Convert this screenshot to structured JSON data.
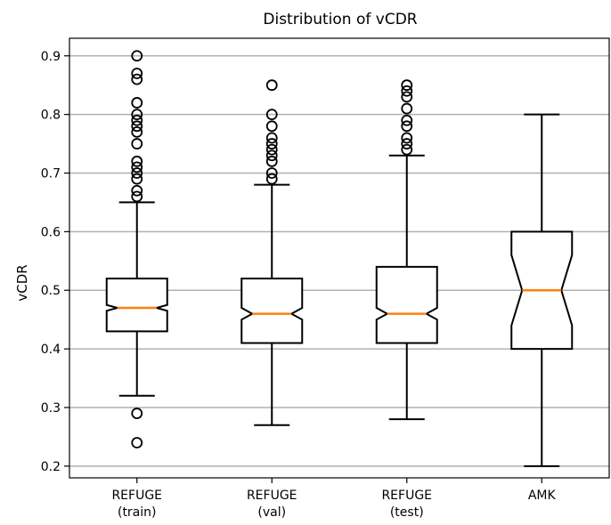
{
  "chart_data": {
    "type": "boxplot",
    "title": "Distribution of vCDR",
    "xlabel": "",
    "ylabel": "vCDR",
    "ylim": [
      0.18,
      0.93
    ],
    "yticks": [
      "0.2",
      "0.3",
      "0.4",
      "0.5",
      "0.6",
      "0.7",
      "0.8",
      "0.9"
    ],
    "grid": "horizontal",
    "notched": true,
    "colors": {
      "box": "#000000",
      "median": "#ff7f0e",
      "grid": "#b0b0b0"
    },
    "categories": [
      [
        "REFUGE",
        "(train)"
      ],
      [
        "REFUGE",
        "(val)"
      ],
      [
        "REFUGE",
        "(test)"
      ],
      [
        "AMK"
      ]
    ],
    "boxes": [
      {
        "whisker_low": 0.32,
        "q1": 0.43,
        "median": 0.47,
        "q3": 0.52,
        "whisker_high": 0.65,
        "notch_low": 0.465,
        "notch_high": 0.475,
        "outliers": [
          0.24,
          0.29,
          0.66,
          0.67,
          0.69,
          0.7,
          0.71,
          0.72,
          0.75,
          0.77,
          0.78,
          0.79,
          0.8,
          0.82,
          0.86,
          0.87,
          0.9
        ]
      },
      {
        "whisker_low": 0.27,
        "q1": 0.41,
        "median": 0.46,
        "q3": 0.52,
        "whisker_high": 0.68,
        "notch_low": 0.45,
        "notch_high": 0.47,
        "outliers": [
          0.69,
          0.7,
          0.72,
          0.73,
          0.74,
          0.75,
          0.76,
          0.78,
          0.8,
          0.85
        ]
      },
      {
        "whisker_low": 0.28,
        "q1": 0.41,
        "median": 0.46,
        "q3": 0.54,
        "whisker_high": 0.73,
        "notch_low": 0.45,
        "notch_high": 0.47,
        "outliers": [
          0.74,
          0.75,
          0.76,
          0.78,
          0.79,
          0.81,
          0.83,
          0.84,
          0.85
        ]
      },
      {
        "whisker_low": 0.2,
        "q1": 0.4,
        "median": 0.5,
        "q3": 0.6,
        "whisker_high": 0.8,
        "notch_low": 0.44,
        "notch_high": 0.56,
        "outliers": []
      }
    ]
  }
}
